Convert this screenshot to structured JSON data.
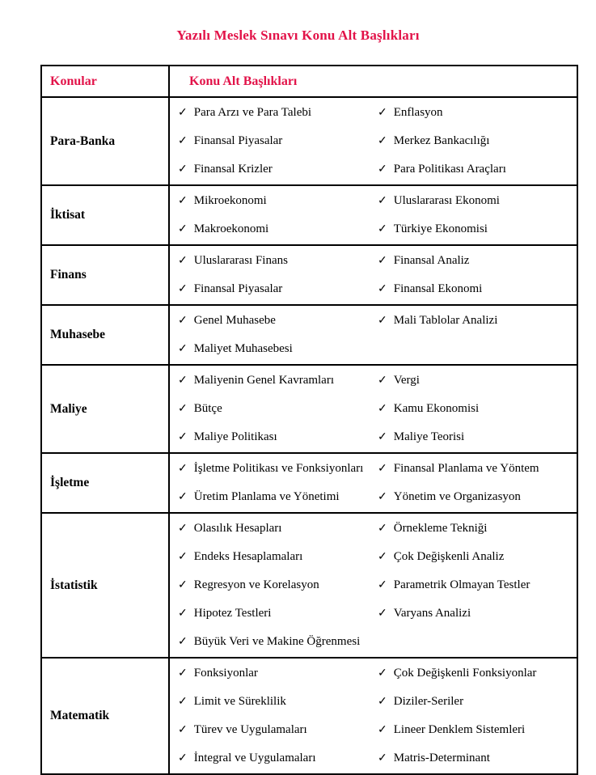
{
  "page": {
    "title": "Yazılı Meslek Sınavı Konu Alt Başlıkları"
  },
  "colors": {
    "accent": "#E21349",
    "border": "#000000",
    "text": "#000000"
  },
  "table": {
    "check_icon": "✓",
    "headers": {
      "topics": "Konular",
      "subtopics": "Konu Alt Başlıkları"
    },
    "rows": [
      {
        "topic": "Para-Banka",
        "col1": [
          "Para Arzı ve Para Talebi",
          "Finansal Piyasalar",
          "Finansal Krizler"
        ],
        "col2": [
          "Enflasyon",
          "Merkez Bankacılığı",
          "Para Politikası Araçları"
        ]
      },
      {
        "topic": "İktisat",
        "col1": [
          "Mikroekonomi",
          "Makroekonomi"
        ],
        "col2": [
          "Uluslararası Ekonomi",
          "Türkiye Ekonomisi"
        ]
      },
      {
        "topic": "Finans",
        "col1": [
          "Uluslararası Finans",
          "Finansal Piyasalar"
        ],
        "col2": [
          "Finansal Analiz",
          "Finansal Ekonomi"
        ]
      },
      {
        "topic": "Muhasebe",
        "col1": [
          "Genel Muhasebe",
          "Maliyet Muhasebesi"
        ],
        "col2": [
          "Mali Tablolar Analizi"
        ]
      },
      {
        "topic": "Maliye",
        "col1": [
          "Maliyenin Genel Kavramları",
          "Bütçe",
          "Maliye Politikası"
        ],
        "col2": [
          "Vergi",
          "Kamu Ekonomisi",
          "Maliye Teorisi"
        ]
      },
      {
        "topic": "İşletme",
        "col1": [
          "İşletme Politikası ve Fonksiyonları",
          "Üretim Planlama ve Yönetimi"
        ],
        "col2": [
          "Finansal Planlama ve Yöntem",
          "Yönetim ve Organizasyon"
        ]
      },
      {
        "topic": "İstatistik",
        "col1": [
          "Olasılık Hesapları",
          "Endeks Hesaplamaları",
          "Regresyon ve Korelasyon",
          "Hipotez Testleri",
          "Büyük Veri ve Makine Öğrenmesi"
        ],
        "col2": [
          "Örnekleme Tekniği",
          "Çok Değişkenli Analiz",
          "Parametrik Olmayan Testler",
          "Varyans Analizi"
        ]
      },
      {
        "topic": "Matematik",
        "col1": [
          "Fonksiyonlar",
          "Limit ve Süreklilik",
          "Türev ve Uygulamaları",
          "İntegral ve Uygulamaları"
        ],
        "col2": [
          "Çok Değişkenli Fonksiyonlar",
          "Diziler-Seriler",
          "Lineer Denklem Sistemleri",
          "Matris-Determinant"
        ]
      }
    ]
  }
}
